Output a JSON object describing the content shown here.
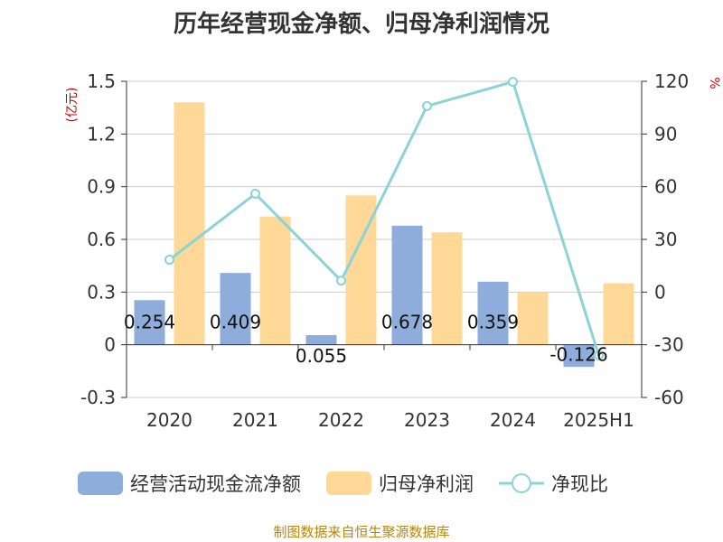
{
  "title": "历年经营现金净额、归母净利润情况",
  "source": "制图数据来自恒生聚源数据库",
  "chart_data": {
    "type": "bar",
    "categories": [
      "2020",
      "2021",
      "2022",
      "2023",
      "2024",
      "2025H1"
    ],
    "left_axis": {
      "unit": "(亿元)",
      "ylim": [
        -0.3,
        1.5
      ],
      "ticks": [
        "1.5",
        "1.2",
        "0.9",
        "0.6",
        "0.3",
        "0",
        "-0.3"
      ]
    },
    "right_axis": {
      "unit": "%",
      "ylim": [
        -60,
        120
      ],
      "ticks": [
        "120",
        "90",
        "60",
        "30",
        "0",
        "-30",
        "-60"
      ]
    },
    "grid": true,
    "legend_position": "bottom",
    "series": [
      {
        "name": "经营活动现金流净额",
        "type": "bar",
        "axis": "left",
        "color": "#8EADDB",
        "values": [
          0.254,
          0.409,
          0.055,
          0.678,
          0.359,
          -0.126
        ],
        "labels": [
          "0.254",
          "0.409",
          "0.055",
          "0.678",
          "0.359",
          "-0.126"
        ]
      },
      {
        "name": "归母净利润",
        "type": "bar",
        "axis": "left",
        "color": "#FDD896",
        "values": [
          1.38,
          0.73,
          0.85,
          0.64,
          0.3,
          0.35
        ]
      },
      {
        "name": "净现比",
        "type": "line",
        "axis": "right",
        "color": "#8CD3D8",
        "values": [
          18.4,
          56.0,
          6.5,
          105.9,
          119.7,
          -36.0
        ]
      }
    ]
  }
}
